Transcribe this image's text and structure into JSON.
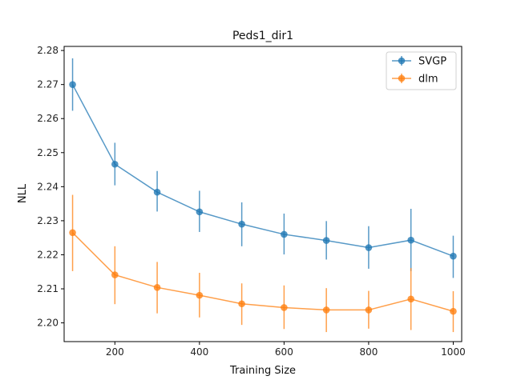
{
  "chart_data": {
    "type": "line",
    "title": "Peds1_dir1",
    "xlabel": "Training Size",
    "ylabel": "NLL",
    "xlim": [
      80,
      1020
    ],
    "ylim": [
      2.1945,
      2.2812
    ],
    "xticks": [
      200,
      400,
      600,
      800,
      1000
    ],
    "yticks": [
      2.2,
      2.21,
      2.22,
      2.23,
      2.24,
      2.25,
      2.26,
      2.27,
      2.28
    ],
    "ytick_labels": [
      "2.20",
      "2.21",
      "2.22",
      "2.23",
      "2.24",
      "2.25",
      "2.26",
      "2.27",
      "2.28"
    ],
    "grid": false,
    "legend_position": "top-right",
    "series": [
      {
        "name": "SVGP",
        "color": "#1f77b4",
        "x": [
          100,
          200,
          300,
          400,
          500,
          600,
          700,
          800,
          900,
          1000
        ],
        "y": [
          2.27,
          2.2466,
          2.2384,
          2.2326,
          2.229,
          2.226,
          2.2242,
          2.2221,
          2.2243,
          2.2196
        ],
        "err_low": [
          2.2623,
          2.2404,
          2.2327,
          2.2267,
          2.2225,
          2.2201,
          2.2186,
          2.2159,
          2.2152,
          2.2132
        ],
        "err_high": [
          2.2777,
          2.2529,
          2.2446,
          2.2388,
          2.2354,
          2.2321,
          2.2299,
          2.2284,
          2.2335,
          2.2256
        ]
      },
      {
        "name": "dlm",
        "color": "#ff7f0e",
        "x": [
          100,
          200,
          300,
          400,
          500,
          600,
          700,
          800,
          900,
          1000
        ],
        "y": [
          2.2265,
          2.2141,
          2.2104,
          2.2081,
          2.2056,
          2.2045,
          2.2038,
          2.2038,
          2.207,
          2.2034
        ],
        "err_low": [
          2.2152,
          2.2055,
          2.2028,
          2.2016,
          2.1994,
          2.1982,
          2.1973,
          2.1983,
          2.1979,
          2.1973
        ],
        "err_high": [
          2.2376,
          2.2225,
          2.2179,
          2.2147,
          2.2116,
          2.211,
          2.2102,
          2.2094,
          2.2161,
          2.2093
        ]
      }
    ]
  }
}
